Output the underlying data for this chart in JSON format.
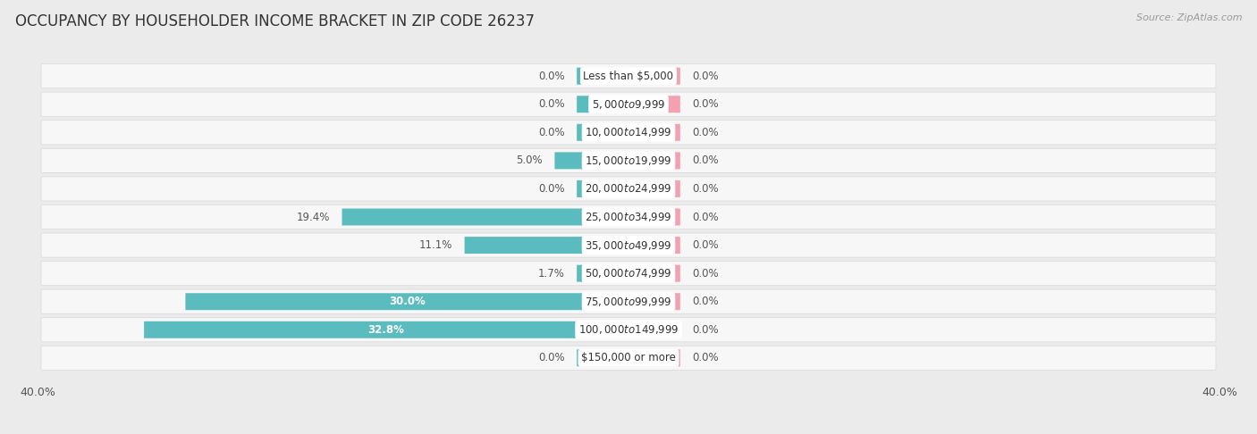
{
  "title": "OCCUPANCY BY HOUSEHOLDER INCOME BRACKET IN ZIP CODE 26237",
  "source": "Source: ZipAtlas.com",
  "categories": [
    "Less than $5,000",
    "$5,000 to $9,999",
    "$10,000 to $14,999",
    "$15,000 to $19,999",
    "$20,000 to $24,999",
    "$25,000 to $34,999",
    "$35,000 to $49,999",
    "$50,000 to $74,999",
    "$75,000 to $99,999",
    "$100,000 to $149,999",
    "$150,000 or more"
  ],
  "owner_values": [
    0.0,
    0.0,
    0.0,
    5.0,
    0.0,
    19.4,
    11.1,
    1.7,
    30.0,
    32.8,
    0.0
  ],
  "renter_values": [
    0.0,
    0.0,
    0.0,
    0.0,
    0.0,
    0.0,
    0.0,
    0.0,
    0.0,
    0.0,
    0.0
  ],
  "owner_color": "#5bbcbf",
  "renter_color": "#f4a0b0",
  "axis_max": 40.0,
  "stub_size": 3.5,
  "bg_color": "#ebebeb",
  "row_bg_color": "#f7f7f7",
  "row_border_color": "#d8d8d8",
  "title_fontsize": 12,
  "label_fontsize": 8.5,
  "category_fontsize": 8.5,
  "legend_fontsize": 9,
  "source_fontsize": 8
}
